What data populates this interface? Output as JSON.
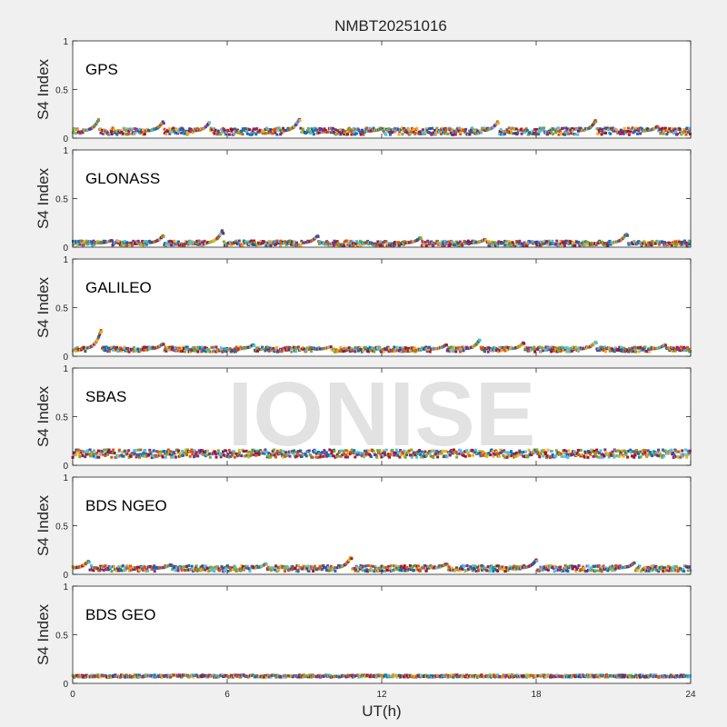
{
  "figure": {
    "title": "NMBT20251016",
    "watermark": "IONISE",
    "xlabel": "UT(h)",
    "xticks": [
      "0",
      "6",
      "12",
      "18",
      "24"
    ],
    "yticks": [
      "0",
      "0.5",
      "1"
    ]
  },
  "colors": [
    "#0072BD",
    "#D95319",
    "#EDB120",
    "#7E2F8E",
    "#77AC30",
    "#4DBEEE",
    "#A2142F"
  ],
  "chart_data": [
    {
      "type": "scatter",
      "panel": "GPS",
      "label": "GPS",
      "ylabel": "S4 Index",
      "xlabel": "",
      "xlim": [
        0,
        24
      ],
      "ylim": [
        0,
        1
      ],
      "grid": false,
      "baseline": 0.07,
      "spread": 0.035,
      "peaks": [
        [
          1.0,
          0.19
        ],
        [
          3.5,
          0.17
        ],
        [
          5.3,
          0.16
        ],
        [
          8.8,
          0.2
        ],
        [
          12.0,
          0.1
        ],
        [
          16.5,
          0.17
        ],
        [
          20.3,
          0.18
        ],
        [
          22.7,
          0.12
        ]
      ]
    },
    {
      "type": "scatter",
      "panel": "GLONASS",
      "label": "GLONASS",
      "ylabel": "S4 Index",
      "xlabel": "",
      "xlim": [
        0,
        24
      ],
      "ylim": [
        0,
        1
      ],
      "grid": false,
      "baseline": 0.04,
      "spread": 0.025,
      "peaks": [
        [
          1.5,
          0.07
        ],
        [
          3.5,
          0.12
        ],
        [
          5.8,
          0.17
        ],
        [
          9.5,
          0.12
        ],
        [
          13.5,
          0.1
        ],
        [
          16.0,
          0.08
        ],
        [
          21.5,
          0.14
        ]
      ]
    },
    {
      "type": "scatter",
      "panel": "GALILEO",
      "label": "GALILEO",
      "ylabel": "S4 Index",
      "xlabel": "",
      "xlim": [
        0,
        24
      ],
      "ylim": [
        0,
        1
      ],
      "grid": false,
      "baseline": 0.07,
      "spread": 0.025,
      "peaks": [
        [
          1.1,
          0.27
        ],
        [
          3.5,
          0.13
        ],
        [
          7.0,
          0.12
        ],
        [
          10.0,
          0.1
        ],
        [
          14.5,
          0.12
        ],
        [
          15.8,
          0.17
        ],
        [
          17.5,
          0.14
        ],
        [
          20.3,
          0.15
        ],
        [
          23.0,
          0.12
        ]
      ]
    },
    {
      "type": "scatter",
      "panel": "SBAS",
      "label": "SBAS",
      "ylabel": "S4 Index",
      "xlabel": "",
      "xlim": [
        0,
        24
      ],
      "ylim": [
        0,
        1
      ],
      "grid": false,
      "baseline": 0.12,
      "spread": 0.04,
      "peaks": []
    },
    {
      "type": "scatter",
      "panel": "BDS NGEO",
      "label": "BDS NGEO",
      "ylabel": "S4 Index",
      "xlabel": "",
      "xlim": [
        0,
        24
      ],
      "ylim": [
        0,
        1
      ],
      "grid": false,
      "baseline": 0.06,
      "spread": 0.03,
      "peaks": [
        [
          0.6,
          0.14
        ],
        [
          3.8,
          0.1
        ],
        [
          7.5,
          0.11
        ],
        [
          10.8,
          0.18
        ],
        [
          14.5,
          0.11
        ],
        [
          18.0,
          0.15
        ],
        [
          21.8,
          0.12
        ]
      ]
    },
    {
      "type": "scatter",
      "panel": "BDS GEO",
      "label": "BDS GEO",
      "ylabel": "S4 Index",
      "xlabel": "UT(h)",
      "xlim": [
        0,
        24
      ],
      "ylim": [
        0,
        1
      ],
      "grid": false,
      "baseline": 0.075,
      "spread": 0.012,
      "peaks": []
    }
  ]
}
